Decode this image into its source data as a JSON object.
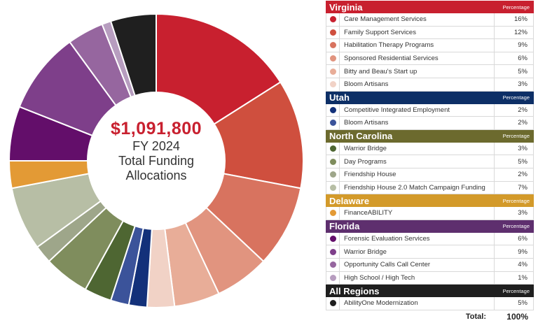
{
  "center": {
    "amount": "$1,091,800",
    "line1": "FY 2024",
    "line2": "Total Funding",
    "line3": "Allocations"
  },
  "legend": {
    "percentage_header": "Percentage",
    "total_label": "Total:",
    "total_value": "100%"
  },
  "chart_data": {
    "type": "pie",
    "title": "$1,091,800 FY 2024 Total Funding Allocations",
    "groups": [
      {
        "region": "Virginia",
        "color": "#c8202f",
        "items": [
          {
            "label": "Care Management Services",
            "value": 16,
            "display": "16%",
            "color": "#c8202f"
          },
          {
            "label": "Family Support Services",
            "value": 12,
            "display": "12%",
            "color": "#cf4f3e"
          },
          {
            "label": "Habilitation Therapy Programs",
            "value": 9,
            "display": "9%",
            "color": "#d8735f"
          },
          {
            "label": "Sponsored Residential Services",
            "value": 6,
            "display": "6%",
            "color": "#e1947f"
          },
          {
            "label": "Bitty and Beau's Start up",
            "value": 5,
            "display": "5%",
            "color": "#e8ad98"
          },
          {
            "label": "Bloom Artisans",
            "value": 3,
            "display": "3%",
            "color": "#f1d2c6"
          }
        ]
      },
      {
        "region": "Utah",
        "color": "#0d2f66",
        "items": [
          {
            "label": "Competitive Integrated Employment",
            "value": 2,
            "display": "2%",
            "color": "#13317a"
          },
          {
            "label": "Bloom Artisans",
            "value": 2,
            "display": "2%",
            "color": "#3b539a"
          }
        ]
      },
      {
        "region": "North Carolina",
        "color": "#6c6a2e",
        "items": [
          {
            "label": "Warrior Bridge",
            "value": 3,
            "display": "3%",
            "color": "#4e6632"
          },
          {
            "label": "Day Programs",
            "value": 5,
            "display": "5%",
            "color": "#7f8d5d"
          },
          {
            "label": "Friendship House",
            "value": 2,
            "display": "2%",
            "color": "#9ea68a"
          },
          {
            "label": "Friendship House 2.0 Match Campaign Funding",
            "value": 7,
            "display": "7%",
            "color": "#b7bea5"
          }
        ]
      },
      {
        "region": "Delaware",
        "color": "#d39a2a",
        "items": [
          {
            "label": "FinanceABILITY",
            "value": 3,
            "display": "3%",
            "color": "#e39a35"
          }
        ]
      },
      {
        "region": "Florida",
        "color": "#5e2f6e",
        "items": [
          {
            "label": "Forensic Evaluation Services",
            "value": 6,
            "display": "6%",
            "color": "#630e6a"
          },
          {
            "label": "Warrior Bridge",
            "value": 9,
            "display": "9%",
            "color": "#7e3f8a"
          },
          {
            "label": "Opportunity Calls Call Center",
            "value": 4,
            "display": "4%",
            "color": "#96669f"
          },
          {
            "label": "High School / High Tech",
            "value": 1,
            "display": "1%",
            "color": "#b79dbf"
          }
        ]
      },
      {
        "region": "All Regions",
        "color": "#1f1f1f",
        "items": [
          {
            "label": "AbilityOne Modernization",
            "value": 5,
            "display": "5%",
            "color": "#1f1f1f"
          }
        ]
      }
    ]
  }
}
